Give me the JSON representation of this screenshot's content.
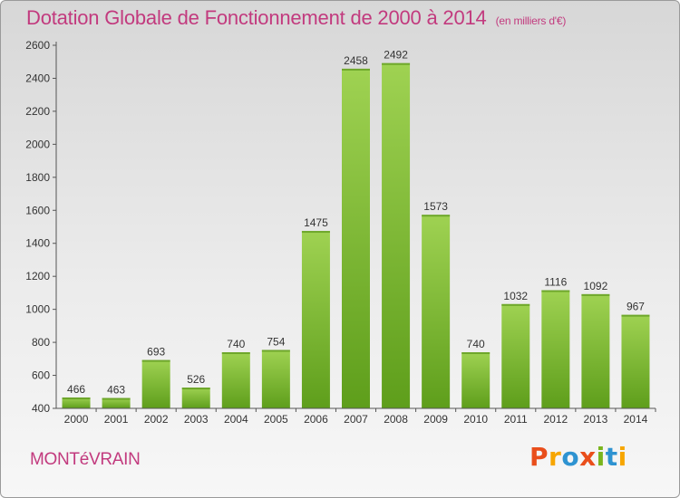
{
  "header": {
    "title": "Dotation Globale de Fonctionnement de 2000 à 2014",
    "unit": "(en milliers d'€)"
  },
  "footer": {
    "commune": "MONTéVRAIN",
    "logo_text": "Proxiti",
    "logo_colors": [
      "#e94e1b",
      "#f7a600",
      "#2e93d1",
      "#e94e1b",
      "#7ab51d",
      "#2e93d1",
      "#f7a600"
    ]
  },
  "chart_data": {
    "type": "bar",
    "title": "Dotation Globale de Fonctionnement de 2000 à 2014",
    "subtitle": "(en milliers d'€)",
    "categories": [
      "2000",
      "2001",
      "2002",
      "2003",
      "2004",
      "2005",
      "2006",
      "2007",
      "2008",
      "2009",
      "2010",
      "2011",
      "2012",
      "2013",
      "2014"
    ],
    "values": [
      466,
      463,
      693,
      526,
      740,
      754,
      1475,
      2458,
      2492,
      1573,
      740,
      1032,
      1116,
      1092,
      967
    ],
    "ylim": [
      400,
      2600
    ],
    "yticks": [
      400,
      600,
      800,
      1000,
      1200,
      1400,
      1600,
      1800,
      2000,
      2200,
      2400,
      2600
    ],
    "xlabel": "",
    "ylabel": "",
    "grid": false,
    "bar_color": "#8cc63f",
    "bar_color_dark": "#5e9e1b"
  }
}
